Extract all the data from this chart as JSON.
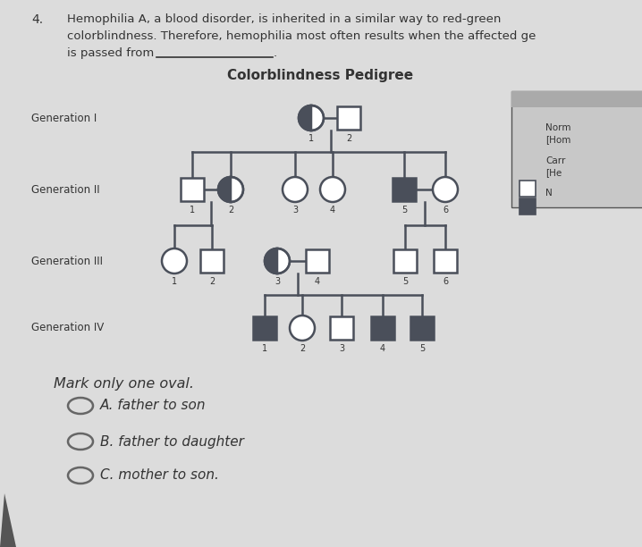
{
  "bg_color": "#e0e0e0",
  "title": "Colorblindness Pedigree",
  "dark_color": "#4a4f5a",
  "white_color": "#ffffff",
  "gen_labels": [
    "Generation I",
    "Generation II",
    "Generation III",
    "Generation IV"
  ],
  "mark_only": "Mark only one oval.",
  "choices": [
    "A. father to son",
    "B. father to daughter",
    "C. mother to son."
  ],
  "line_color": "#4a4f5a",
  "text_color": "#333333",
  "legend_bg": "#c8c8c8",
  "legend_header": "#a0a0a0"
}
